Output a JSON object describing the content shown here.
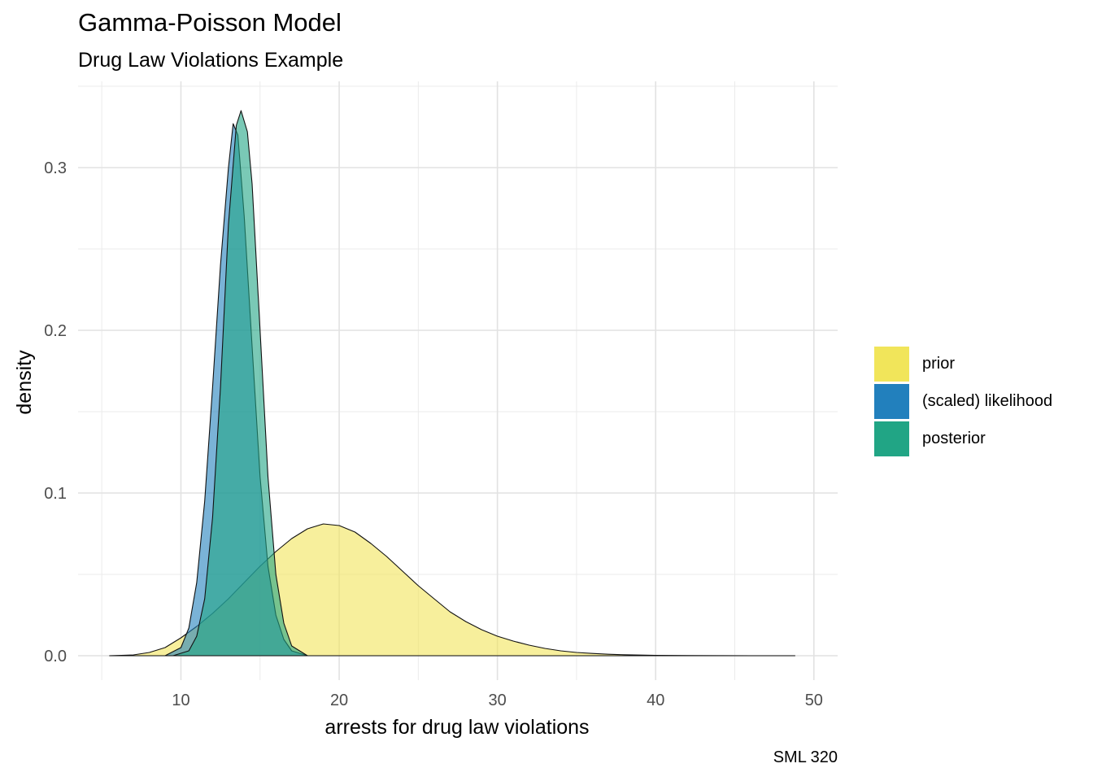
{
  "chart_data": {
    "type": "area",
    "title": "Gamma-Poisson Model",
    "subtitle": "Drug Law Violations Example",
    "xlabel": "arrests for drug law violations",
    "ylabel": "density",
    "caption": "SML 320",
    "xlim": [
      3.5,
      51.5
    ],
    "ylim": [
      -0.015,
      0.353
    ],
    "x_ticks": [
      10,
      20,
      30,
      40,
      50
    ],
    "y_ticks": [
      0.0,
      0.1,
      0.2,
      0.3
    ],
    "x_tick_labels": [
      "10",
      "20",
      "30",
      "40",
      "50"
    ],
    "y_tick_labels": [
      "0.0",
      "0.1",
      "0.2",
      "0.3"
    ],
    "grid": true,
    "legend_position": "right",
    "series": [
      {
        "name": "prior",
        "color": "#F1E55A",
        "x": [
          5.5,
          7,
          8,
          9,
          10,
          11,
          12,
          13,
          14,
          15,
          16,
          17,
          18,
          19,
          20,
          21,
          22,
          23,
          24,
          25,
          26,
          27,
          28,
          29,
          30,
          31,
          32,
          33,
          34,
          35,
          36,
          37,
          38,
          39,
          40,
          42,
          44,
          46,
          48.8
        ],
        "y": [
          0.0,
          0.0005,
          0.002,
          0.005,
          0.011,
          0.018,
          0.026,
          0.035,
          0.045,
          0.055,
          0.064,
          0.072,
          0.078,
          0.081,
          0.08,
          0.076,
          0.069,
          0.061,
          0.052,
          0.043,
          0.035,
          0.027,
          0.021,
          0.016,
          0.012,
          0.009,
          0.0065,
          0.0045,
          0.003,
          0.002,
          0.0014,
          0.0009,
          0.0006,
          0.0004,
          0.0002,
          0.0001,
          5e-05,
          2e-05,
          0.0
        ]
      },
      {
        "name": "(scaled) likelihood",
        "color": "#2280BD",
        "x": [
          5.5,
          9,
          10,
          10.5,
          11,
          11.5,
          12,
          12.5,
          13,
          13.3,
          13.6,
          14,
          14.5,
          15,
          15.5,
          16,
          16.5,
          17,
          18,
          20
        ],
        "y": [
          0.0,
          0.0,
          0.005,
          0.017,
          0.045,
          0.095,
          0.165,
          0.24,
          0.3,
          0.327,
          0.32,
          0.27,
          0.19,
          0.11,
          0.055,
          0.025,
          0.01,
          0.003,
          0.0,
          0.0
        ]
      },
      {
        "name": "posterior",
        "color": "#21A585",
        "x": [
          5.5,
          9.5,
          10.5,
          11,
          11.5,
          12,
          12.5,
          13,
          13.5,
          13.8,
          14.2,
          14.5,
          15,
          15.5,
          16,
          16.5,
          17,
          18,
          20
        ],
        "y": [
          0.0,
          0.0,
          0.003,
          0.012,
          0.035,
          0.085,
          0.165,
          0.265,
          0.326,
          0.335,
          0.322,
          0.29,
          0.2,
          0.11,
          0.05,
          0.02,
          0.006,
          0.0,
          0.0
        ]
      }
    ]
  }
}
